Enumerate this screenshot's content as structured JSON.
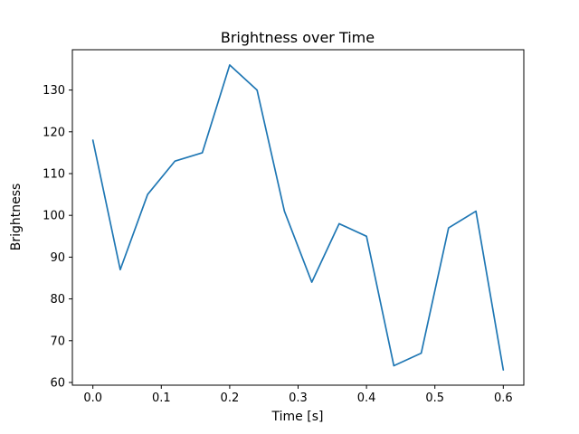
{
  "chart_data": {
    "type": "line",
    "title": "Brightness over Time",
    "xlabel": "Time [s]",
    "ylabel": "Brightness",
    "x": [
      0.0,
      0.04,
      0.08,
      0.12,
      0.16,
      0.2,
      0.24,
      0.28,
      0.32,
      0.36,
      0.4,
      0.44,
      0.48,
      0.52,
      0.56,
      0.6
    ],
    "y": [
      118,
      87,
      105,
      113,
      115,
      136,
      130,
      101,
      84,
      98,
      95,
      64,
      67,
      97,
      101,
      63
    ],
    "xlim": [
      -0.03,
      0.63
    ],
    "ylim": [
      59.35,
      139.65
    ],
    "xticks": [
      0.0,
      0.1,
      0.2,
      0.3,
      0.4,
      0.5,
      0.6
    ],
    "xtick_labels": [
      "0.0",
      "0.1",
      "0.2",
      "0.3",
      "0.4",
      "0.5",
      "0.6"
    ],
    "yticks": [
      60,
      70,
      80,
      90,
      100,
      110,
      120,
      130
    ],
    "ytick_labels": [
      "60",
      "70",
      "80",
      "90",
      "100",
      "110",
      "120",
      "130"
    ],
    "line_color": "#1f77b4",
    "spine_color": "#000000",
    "background": "#ffffff",
    "grid": false,
    "legend_position": "none"
  }
}
